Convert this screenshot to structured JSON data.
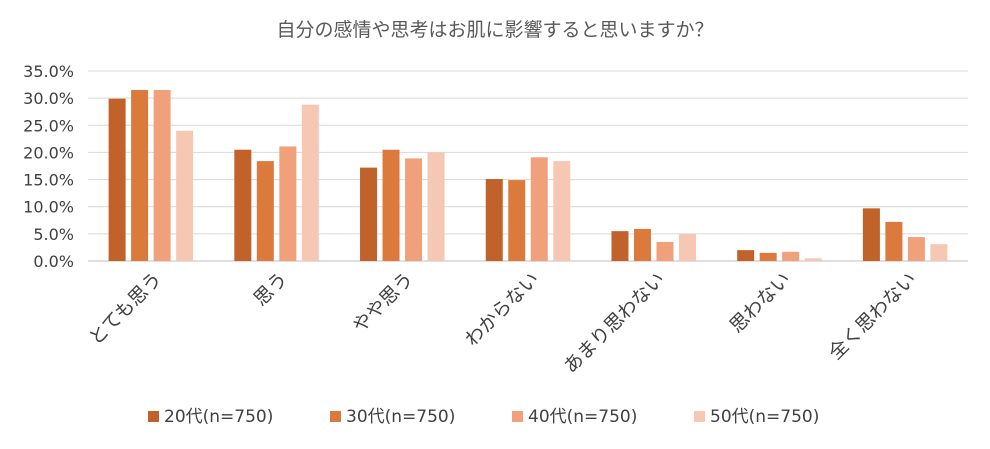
{
  "chart_data": {
    "type": "bar",
    "title": "自分の感情や思考はお肌に影響すると思いますか？",
    "categories": [
      "とても思う",
      "思う",
      "やや思う",
      "わからない",
      "あまり思わない",
      "思わない",
      "全く思わない"
    ],
    "series": [
      {
        "name": "20代(n=750)",
        "color": "#c0622a",
        "values": [
          29.9,
          20.5,
          17.2,
          15.1,
          5.5,
          2.0,
          9.7
        ]
      },
      {
        "name": "30代(n=750)",
        "color": "#db7a3c",
        "values": [
          31.5,
          18.4,
          20.5,
          14.9,
          5.9,
          1.5,
          7.2
        ]
      },
      {
        "name": "40代(n=750)",
        "color": "#f0a07b",
        "values": [
          31.5,
          21.1,
          18.9,
          19.1,
          3.5,
          1.7,
          4.4
        ]
      },
      {
        "name": "50代(n=750)",
        "color": "#f6c7b3",
        "values": [
          24.0,
          28.8,
          20.0,
          18.4,
          5.0,
          0.5,
          3.1
        ]
      }
    ],
    "y_ticks": [
      "0.0%",
      "5.0%",
      "10.0%",
      "15.0%",
      "20.0%",
      "25.0%",
      "30.0%",
      "35.0%"
    ],
    "ylim": [
      0,
      35
    ],
    "grid": true,
    "legend_position": "bottom"
  }
}
